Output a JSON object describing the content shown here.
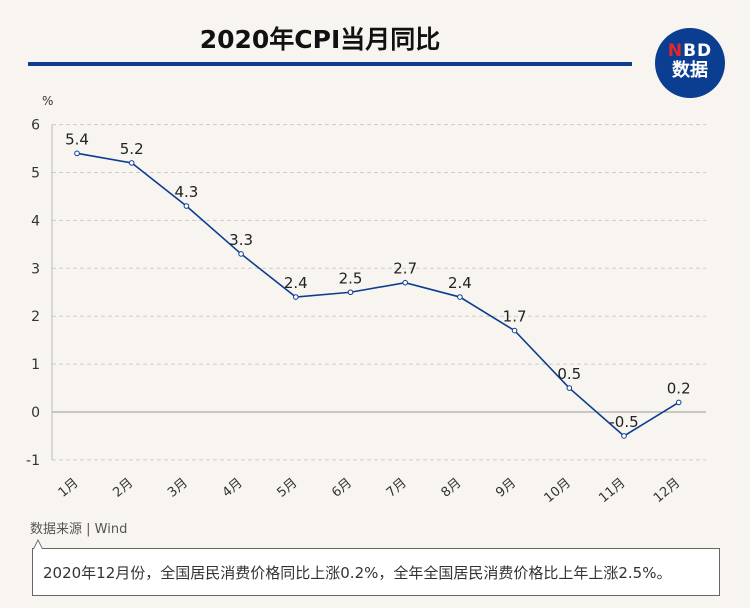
{
  "logo": {
    "line1_n": "N",
    "line1_rest": "BD",
    "line2": "数据"
  },
  "source": "数据来源 | Wind",
  "note": "2020年12月份，全国居民消费价格同比上涨0.2%，全年全国居民消费价格比上年上涨2.5%。",
  "chart_data": {
    "type": "line",
    "title": "2020年CPI当月同比",
    "ylabel": "%",
    "categories": [
      "1月",
      "2月",
      "3月",
      "4月",
      "5月",
      "6月",
      "7月",
      "8月",
      "9月",
      "10月",
      "11月",
      "12月"
    ],
    "values": [
      5.4,
      5.2,
      4.3,
      3.3,
      2.4,
      2.5,
      2.7,
      2.4,
      1.7,
      0.5,
      -0.5,
      0.2
    ],
    "ylim": [
      -1,
      6
    ],
    "yticks": [
      -1,
      0,
      1,
      2,
      3,
      4,
      5,
      6
    ],
    "grid": true,
    "colors": {
      "line": "#0b3d91",
      "grid": "#cccccc"
    }
  }
}
